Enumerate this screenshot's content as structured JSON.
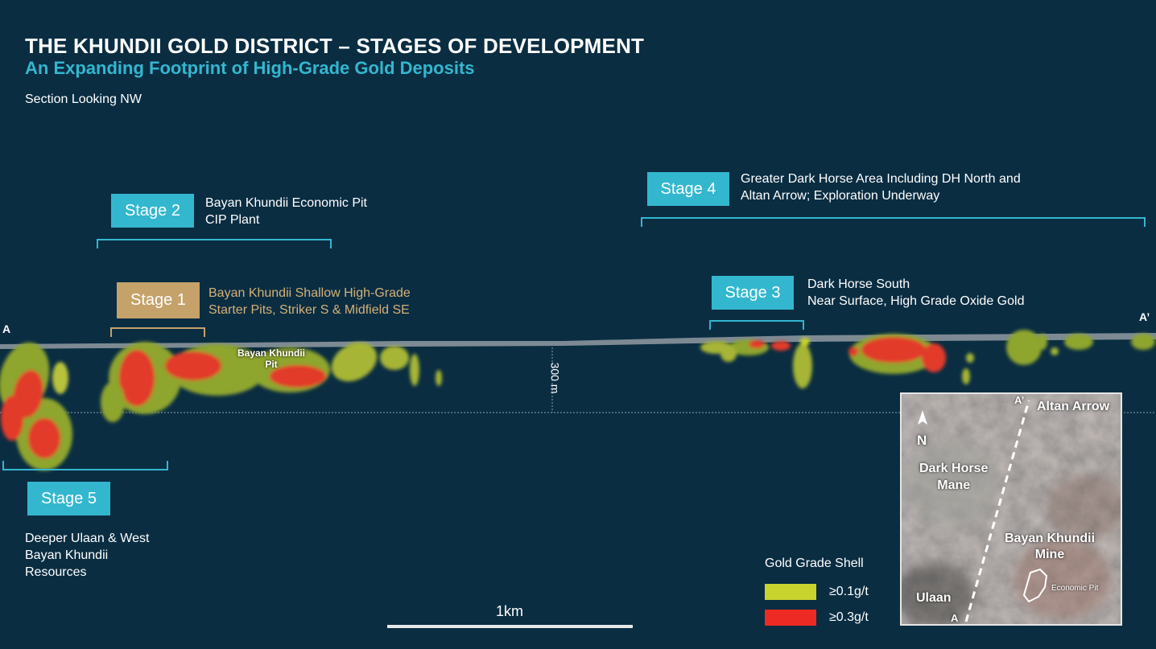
{
  "header": {
    "title": "THE KHUNDII GOLD DISTRICT – STAGES OF DEVELOPMENT",
    "subtitle": "An Expanding Footprint of High-Grade Gold Deposits",
    "view_note": "Section Looking NW"
  },
  "stages": [
    {
      "label": "Stage 1",
      "desc_line1": "Bayan Khundii  Shallow High-Grade",
      "desc_line2": "Starter Pits, Striker S & Midfield SE"
    },
    {
      "label": "Stage 2",
      "desc_line1": "Bayan Khundii Economic Pit",
      "desc_line2": "CIP Plant"
    },
    {
      "label": "Stage 3",
      "desc_line1": "Dark Horse South",
      "desc_line2": "Near Surface, High Grade Oxide Gold"
    },
    {
      "label": "Stage 4",
      "desc_line1": "Greater Dark Horse Area Including DH North and",
      "desc_line2": "Altan Arrow; Exploration Underway"
    },
    {
      "label": "Stage 5",
      "desc_line1": "Deeper Ulaan & West",
      "desc_line2": "Bayan Khundii",
      "desc_line3": "Resources"
    }
  ],
  "section": {
    "start_label": "A",
    "end_label": "A’",
    "pit_label_line1": "Bayan Khundii",
    "pit_label_line2": "Pit",
    "depth_label": "300 m"
  },
  "legend": {
    "title": "Gold Grade Shell",
    "items": [
      {
        "label": "≥0.1g/t",
        "color": "#c9d32e"
      },
      {
        "label": "≥0.3g/t",
        "color": "#ee2a24"
      }
    ]
  },
  "scale": {
    "label": "1km"
  },
  "inset_map": {
    "north_label": "N",
    "a_label": "A",
    "a_prime_label": "A’",
    "altan_arrow": "Altan Arrow",
    "dark_horse_line1": "Dark Horse",
    "dark_horse_line2": "Mane",
    "bayan_khundii_line1": "Bayan Khundii",
    "bayan_khundii_line2": "Mine",
    "economic_pit": "Economic Pit",
    "ulaan": "Ulaan"
  },
  "colors": {
    "background": "#0a2d42",
    "accent": "#33b7cf",
    "stage1": "#c4a26a"
  }
}
